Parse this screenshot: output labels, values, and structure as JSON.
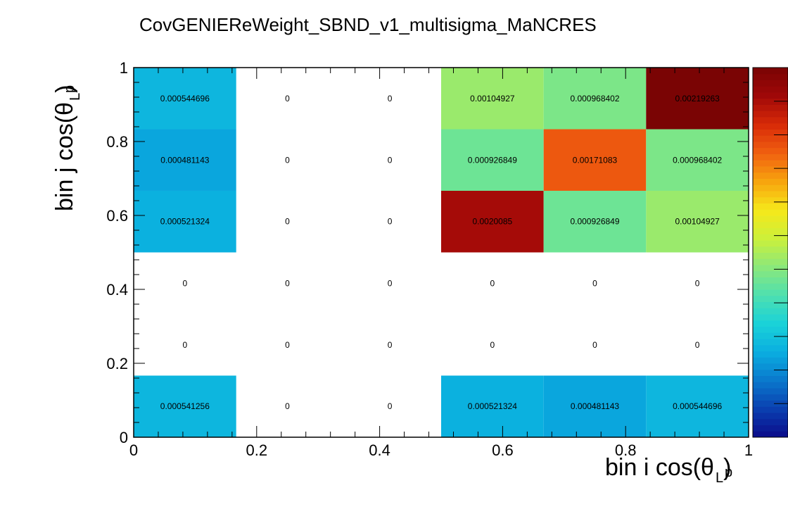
{
  "chart_data": {
    "type": "heatmap",
    "title": "CovGENIEReWeight_SBND_v1_multisigma_MaNCRES",
    "xlabel": {
      "main": "bin i cos(θ",
      "sub": "L",
      "over": "p",
      "close": ")"
    },
    "ylabel": {
      "main": "bin j cos(θ",
      "sub": "L",
      "over": "p",
      "close": ")"
    },
    "x_edges": [
      0,
      0.1667,
      0.3333,
      0.5,
      0.6667,
      0.8333,
      1
    ],
    "y_edges": [
      0,
      0.1667,
      0.3333,
      0.5,
      0.6667,
      0.8333,
      1
    ],
    "xlim": [
      0,
      1
    ],
    "ylim": [
      0,
      1
    ],
    "xticks": [
      "0",
      "0.2",
      "0.4",
      "0.6",
      "0.8",
      "1"
    ],
    "yticks": [
      "0",
      "0.2",
      "0.4",
      "0.6",
      "0.8",
      "1"
    ],
    "zlim": [
      0,
      0.00219263
    ],
    "colormap": [
      "#0b0b8a",
      "#0a3fb0",
      "#0a78cc",
      "#0aaee0",
      "#1ad2d8",
      "#4ee0b0",
      "#8ce87a",
      "#ccf03a",
      "#f6e81a",
      "#f7a40e",
      "#f06010",
      "#d82a08",
      "#a00808",
      "#7a0404"
    ],
    "values": [
      [
        0.000541256,
        0,
        0,
        0.000521324,
        0.000481143,
        0.000544696
      ],
      [
        0,
        0,
        0,
        0,
        0,
        0
      ],
      [
        0,
        0,
        0,
        0,
        0,
        0
      ],
      [
        0.000521324,
        0,
        0,
        0.0020085,
        0.000926849,
        0.00104927
      ],
      [
        0.000481143,
        0,
        0,
        0.000926849,
        0.00171083,
        0.000968402
      ],
      [
        0.000544696,
        0,
        0,
        0.00104927,
        0.000968402,
        0.00219263
      ]
    ],
    "value_labels": [
      [
        "0.000541256",
        "0",
        "0",
        "0.000521324",
        "0.000481143",
        "0.000544696"
      ],
      [
        "0",
        "0",
        "0",
        "0",
        "0",
        "0"
      ],
      [
        "0",
        "0",
        "0",
        "0",
        "0",
        "0"
      ],
      [
        "0.000521324",
        "0",
        "0",
        "0.0020085",
        "0.000926849",
        "0.00104927"
      ],
      [
        "0.000481143",
        "0",
        "0",
        "0.000926849",
        "0.00171083",
        "0.000968402"
      ],
      [
        "0.000544696",
        "0",
        "0",
        "0.00104927",
        "0.000968402",
        "0.00219263"
      ]
    ]
  }
}
